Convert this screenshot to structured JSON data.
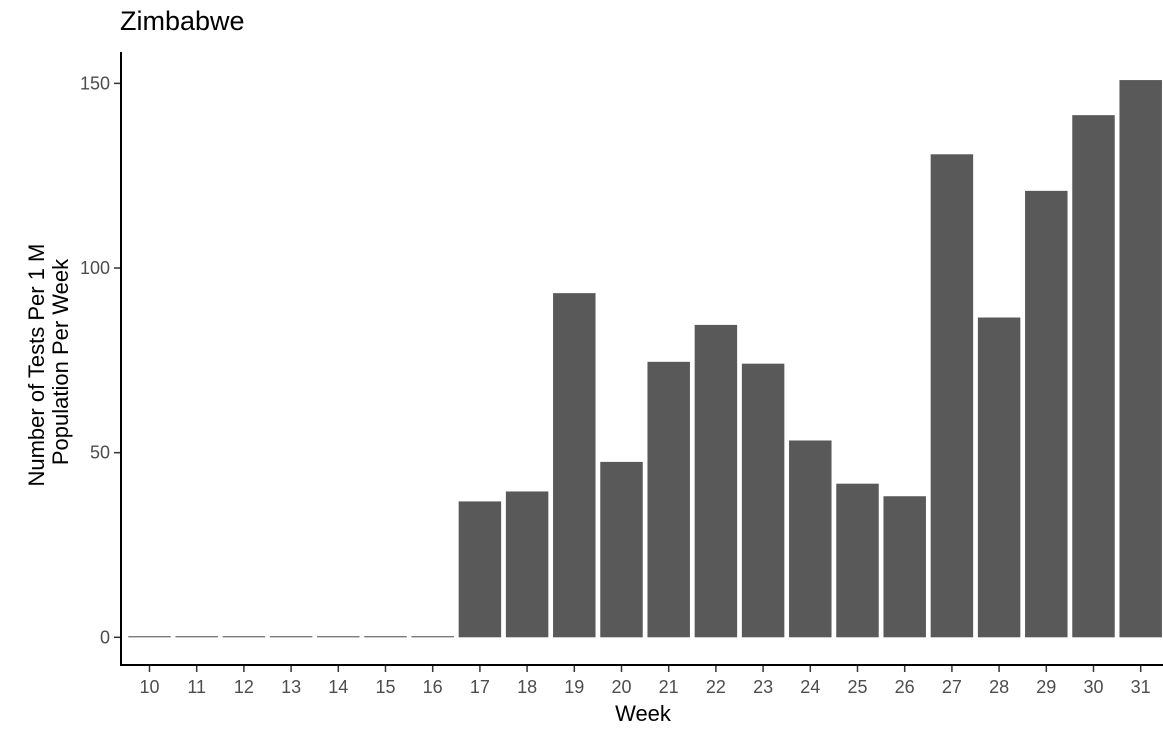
{
  "chart_data": {
    "type": "bar",
    "title": "Zimbabwe",
    "xlabel": "Week",
    "ylabel": [
      "Number of Tests Per 1 M",
      "Population Per Week"
    ],
    "categories": [
      "10",
      "11",
      "12",
      "13",
      "14",
      "15",
      "16",
      "17",
      "18",
      "19",
      "20",
      "21",
      "22",
      "23",
      "24",
      "25",
      "26",
      "27",
      "28",
      "29",
      "30",
      "31"
    ],
    "values": [
      0.3,
      0.3,
      0.3,
      0.3,
      0.3,
      0.3,
      0.3,
      36.8,
      39.5,
      93.2,
      47.5,
      74.6,
      84.6,
      74.1,
      53.3,
      41.6,
      38.2,
      130.8,
      86.6,
      120.9,
      141.4,
      150.9
    ],
    "yticks": [
      0,
      50,
      100,
      150
    ],
    "ylim": [
      -7.5,
      158.5
    ],
    "bar_color": "#595959",
    "grid": false
  }
}
